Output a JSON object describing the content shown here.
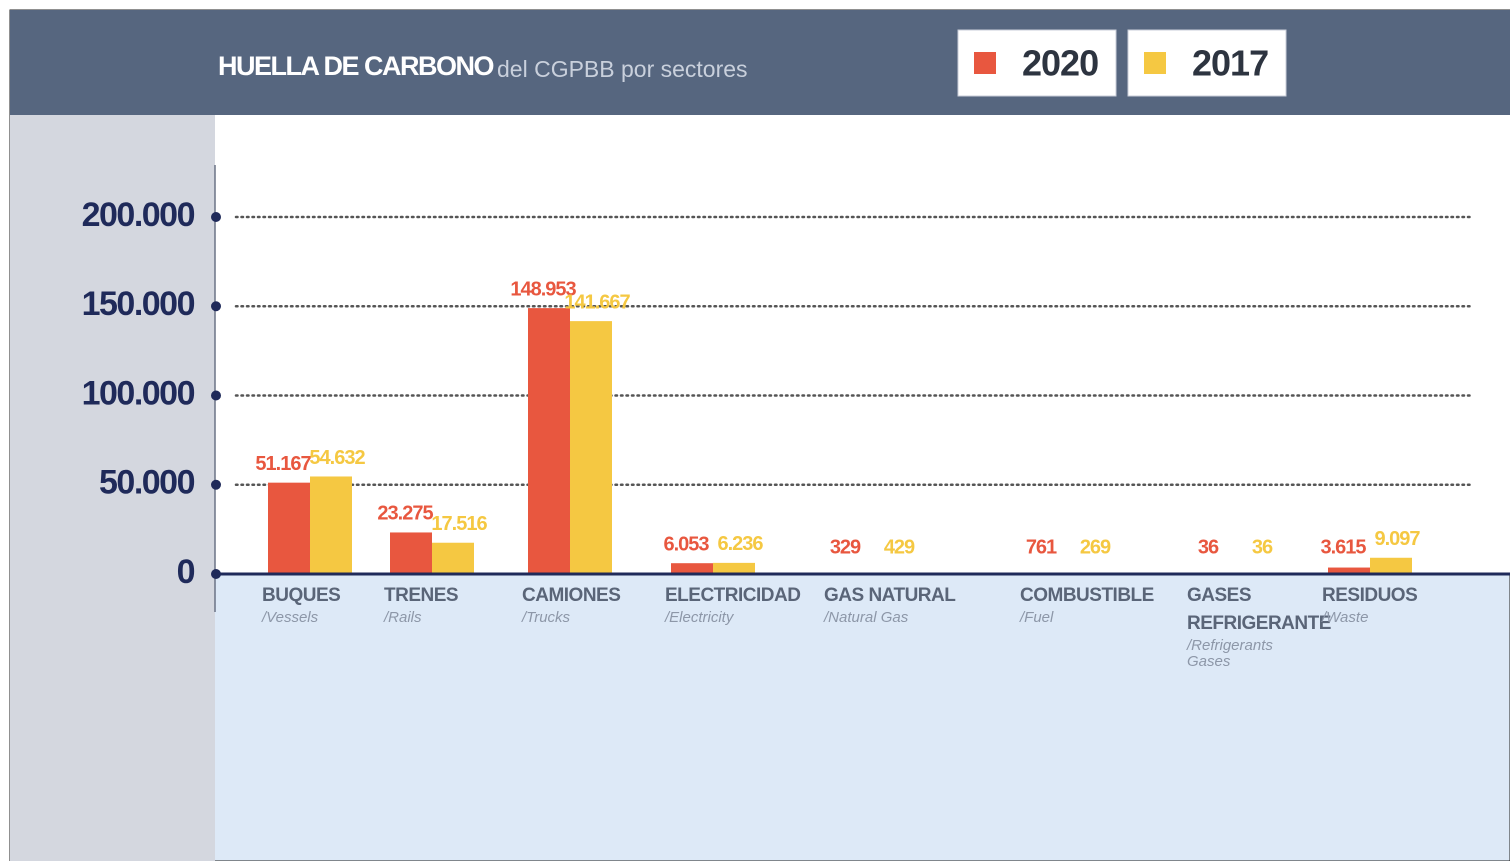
{
  "chart_data": {
    "type": "bar",
    "title": "HUELLA DE CARBONO",
    "subtitle": "del CGPBB por sectores",
    "categories": [
      "BUQUES",
      "TRENES",
      "CAMIONES",
      "ELECTRICIDAD",
      "GAS NATURAL",
      "COMBUSTIBLE",
      "GASES REFRIGERANTE",
      "RESIDUOS"
    ],
    "subcategories": [
      "/Vessels",
      "/Rails",
      "/Trucks",
      "/Electricity",
      "/Natural Gas",
      "/Fuel",
      "/Refrigerants Gases",
      "/Waste"
    ],
    "series": [
      {
        "name": "2020",
        "color": "#e8573f",
        "values": [
          51167,
          23275,
          148953,
          6053,
          329,
          761,
          36,
          3615
        ],
        "value_labels": [
          "51.167",
          "23.275",
          "148.953",
          "6.053",
          "329",
          "761",
          "36",
          "3.615"
        ]
      },
      {
        "name": "2017",
        "color": "#f5c842",
        "values": [
          54632,
          17516,
          141667,
          6236,
          429,
          269,
          36,
          9097
        ],
        "value_labels": [
          "54.632",
          "17.516",
          "141.667",
          "6.236",
          "429",
          "269",
          "36",
          "9.097"
        ]
      }
    ],
    "ylim": [
      0,
      200000
    ],
    "yticks": [
      0,
      {
        "value": 50000,
        "label": "50.000"
      },
      {
        "value": 100000,
        "label": "100.000"
      },
      {
        "value": 150000,
        "label": "150.000"
      },
      {
        "value": 200000,
        "label": "200.000"
      }
    ],
    "grid": true
  }
}
